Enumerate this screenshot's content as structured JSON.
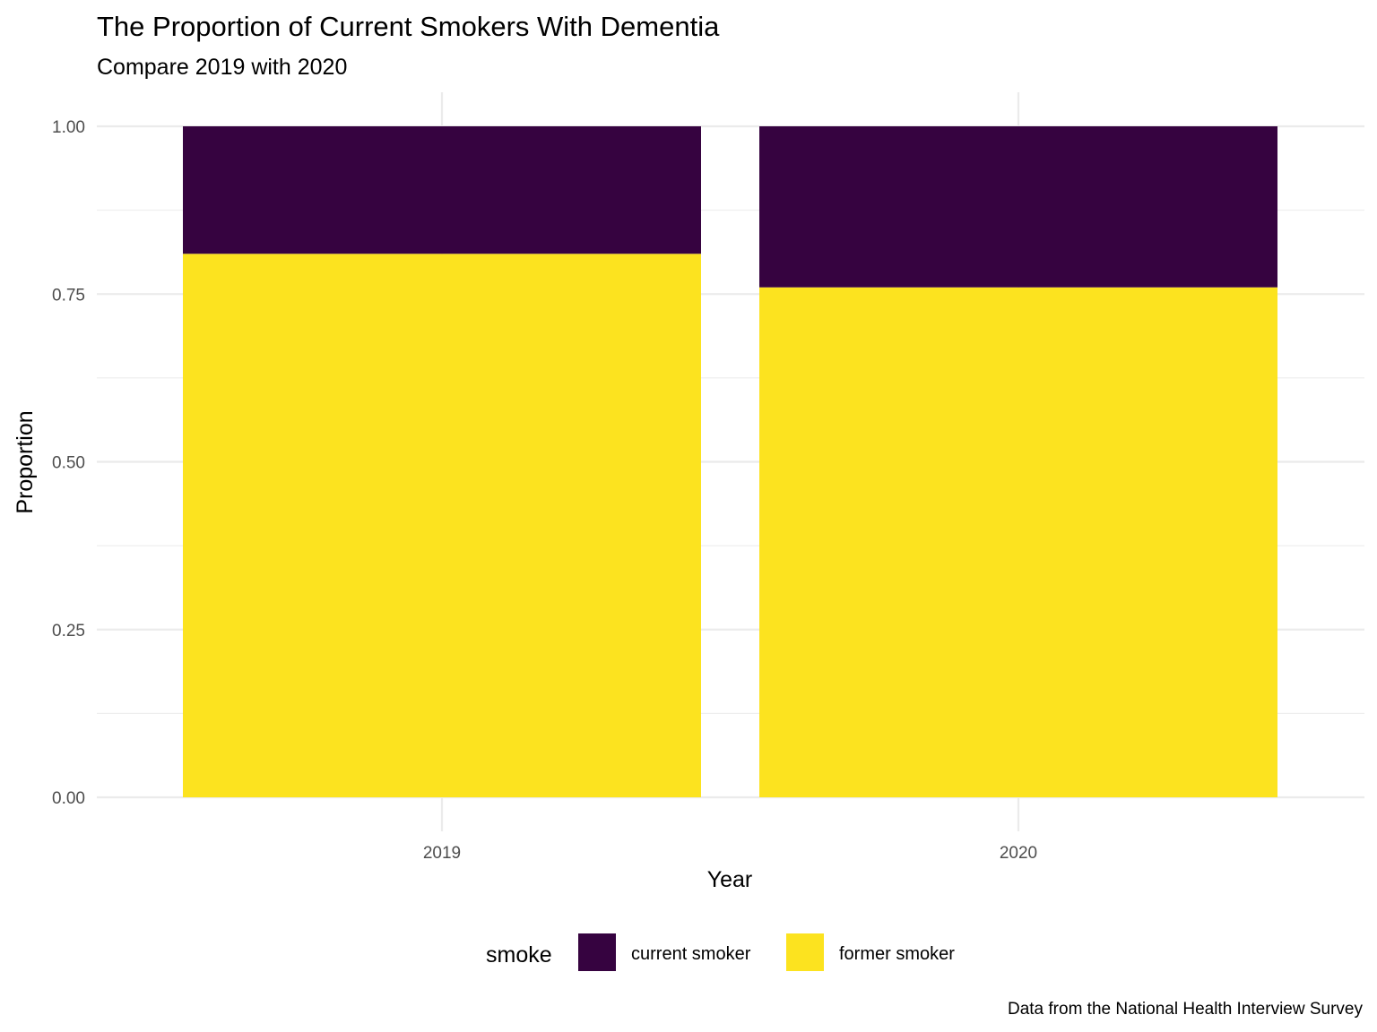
{
  "chart_data": {
    "type": "bar",
    "stacked": true,
    "title": "The Proportion of Current Smokers With Dementia",
    "subtitle": "Compare 2019 with 2020",
    "xlabel": "Year",
    "ylabel": "Proportion",
    "caption": "Data from the National Health Interview Survey",
    "categories": [
      "2019",
      "2020"
    ],
    "ylim": [
      0,
      1
    ],
    "y_ticks": [
      "0.00",
      "0.25",
      "0.50",
      "0.75",
      "1.00"
    ],
    "y_tick_values": [
      0,
      0.25,
      0.5,
      0.75,
      1.0
    ],
    "grid": true,
    "legend": {
      "title": "smoke",
      "position": "bottom",
      "entries": [
        "current smoker",
        "former smoker"
      ]
    },
    "series": [
      {
        "name": "current smoker",
        "color": "#360340",
        "values": [
          0.19,
          0.24
        ]
      },
      {
        "name": "former smoker",
        "color": "#FCE31F",
        "values": [
          0.81,
          0.76
        ]
      }
    ]
  }
}
